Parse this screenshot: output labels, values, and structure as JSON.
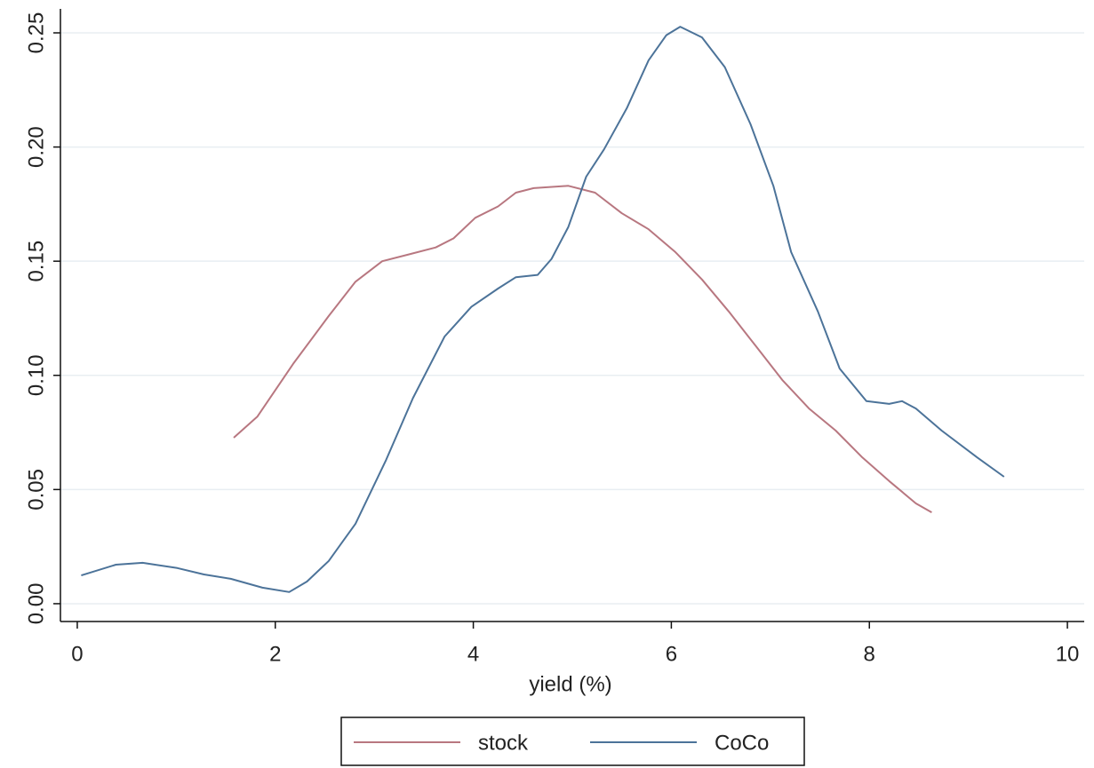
{
  "chart_data": {
    "type": "line",
    "x_label": "yield (%)",
    "xlim": [
      -0.17,
      10.17
    ],
    "ylim": [
      -0.0078,
      0.2605
    ],
    "xticks": [
      0,
      2,
      4,
      6,
      8,
      10
    ],
    "yticks": [
      {
        "value": 0,
        "label": "0.00"
      },
      {
        "value": 0.05,
        "label": "0.05"
      },
      {
        "value": 0.1,
        "label": "0.10"
      },
      {
        "value": 0.15,
        "label": "0.15"
      },
      {
        "value": 0.2,
        "label": "0.20"
      },
      {
        "value": 0.25,
        "label": "0.25"
      }
    ],
    "grid": true,
    "legend": "bottom",
    "series": [
      {
        "name": "stock",
        "color": "#b87780",
        "x": [
          1.58,
          1.82,
          2.18,
          2.54,
          2.81,
          3.08,
          3.35,
          3.62,
          3.8,
          4.02,
          4.25,
          4.43,
          4.61,
          4.96,
          5.23,
          5.5,
          5.77,
          6.04,
          6.31,
          6.58,
          6.85,
          7.12,
          7.39,
          7.66,
          7.93,
          8.2,
          8.47,
          8.63
        ],
        "values": [
          0.0727,
          0.082,
          0.105,
          0.126,
          0.141,
          0.15,
          0.153,
          0.156,
          0.16,
          0.169,
          0.174,
          0.18,
          0.182,
          0.183,
          0.18,
          0.171,
          0.164,
          0.154,
          0.142,
          0.128,
          0.113,
          0.098,
          0.0855,
          0.0758,
          0.064,
          0.0537,
          0.0439,
          0.04
        ]
      },
      {
        "name": "CoCo",
        "color": "#4c7399",
        "x": [
          0.04,
          0.39,
          0.66,
          1.01,
          1.28,
          1.55,
          1.87,
          2.14,
          2.32,
          2.54,
          2.81,
          3.12,
          3.39,
          3.71,
          3.98,
          4.25,
          4.43,
          4.65,
          4.79,
          4.96,
          5.14,
          5.32,
          5.55,
          5.77,
          5.95,
          6.09,
          6.31,
          6.54,
          6.8,
          7.03,
          7.21,
          7.48,
          7.7,
          7.97,
          8.2,
          8.33,
          8.47,
          8.73,
          9.09,
          9.36
        ],
        "values": [
          0.0124,
          0.0171,
          0.0179,
          0.0156,
          0.0128,
          0.0109,
          0.007,
          0.0051,
          0.0097,
          0.0187,
          0.035,
          0.063,
          0.09,
          0.117,
          0.13,
          0.138,
          0.143,
          0.144,
          0.151,
          0.165,
          0.187,
          0.199,
          0.217,
          0.238,
          0.249,
          0.2527,
          0.248,
          0.235,
          0.21,
          0.183,
          0.154,
          0.128,
          0.103,
          0.0887,
          0.0875,
          0.0887,
          0.0855,
          0.0758,
          0.064,
          0.0556
        ]
      }
    ]
  }
}
